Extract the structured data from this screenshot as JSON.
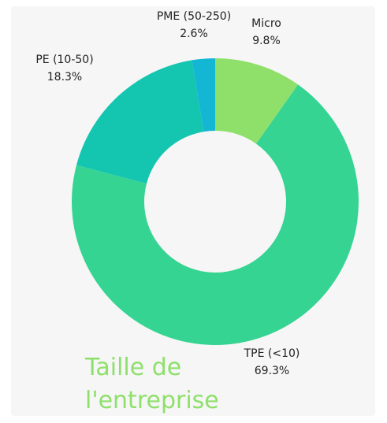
{
  "chart_data": {
    "type": "donut",
    "title": "Taille de l'entreprise",
    "categories": [
      "Micro",
      "TPE (<10)",
      "PE (10-50)",
      "PME (50-250)"
    ],
    "values": [
      9.8,
      69.3,
      18.3,
      2.6
    ],
    "value_labels": [
      "9.8%",
      "69.3%",
      "18.3%",
      "2.6%"
    ],
    "colors": [
      "#8ee06b",
      "#35d492",
      "#14c6b0",
      "#14b7d3"
    ]
  }
}
